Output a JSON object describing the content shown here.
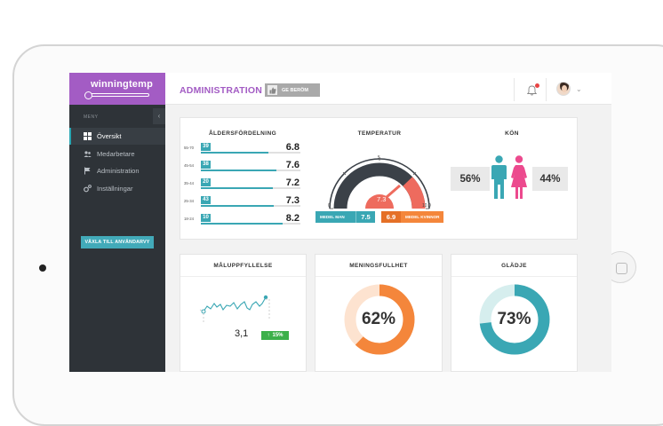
{
  "app": {
    "logo": "winningtemp",
    "page_title": "ADMINISTRATION",
    "praise_button": "GE BERÖM",
    "notification_count": "1"
  },
  "sidebar": {
    "menu_label": "MENY",
    "items": [
      {
        "label": "Översikt",
        "icon": "grid-icon",
        "active": true
      },
      {
        "label": "Medarbetare",
        "icon": "users-icon",
        "active": false
      },
      {
        "label": "Administration",
        "icon": "flag-icon",
        "active": false
      },
      {
        "label": "Inställningar",
        "icon": "gear-icon",
        "active": false
      }
    ],
    "switch_button": "VÄXLA TILL ANVÄNDARVY"
  },
  "age": {
    "title": "ÅLDERSFÖRDELNING",
    "rows": [
      {
        "range": "55-70",
        "count": "39",
        "value": "6.8",
        "fill": 0.68
      },
      {
        "range": "45-54",
        "count": "38",
        "value": "7.6",
        "fill": 0.76
      },
      {
        "range": "35-44",
        "count": "20",
        "value": "7.2",
        "fill": 0.72
      },
      {
        "range": "25-34",
        "count": "43",
        "value": "7.3",
        "fill": 0.73
      },
      {
        "range": "18-24",
        "count": "10",
        "value": "8.2",
        "fill": 0.82
      }
    ]
  },
  "temperature": {
    "title": "TEMPERATUR",
    "scale_min": "0",
    "scale_mid": "5",
    "scale_max": "10.0",
    "value": "7.3",
    "legend_men": {
      "label": "MEDEL MAN",
      "value": "7.5",
      "color": "#3aa7b4"
    },
    "legend_women": {
      "label": "MEDEL KVINNOR",
      "value": "6.9",
      "color": "#f4863b"
    }
  },
  "gender": {
    "title": "KÖN",
    "men_percent": "56%",
    "women_percent": "44%",
    "men_color": "#3aa7b4",
    "women_color": "#ec4a8e"
  },
  "goal": {
    "title": "MÅLUPPFYLLELSE",
    "value": "3,1",
    "delta": "15%"
  },
  "meaning": {
    "title": "MENINGSFULLHET",
    "percent": "62%",
    "fraction": 0.62,
    "color": "#f4863b",
    "track": "#fde3d0"
  },
  "joy": {
    "title": "GLÄDJE",
    "percent": "73%",
    "fraction": 0.73,
    "color": "#3aa7b4",
    "track": "#d6eeee"
  }
}
